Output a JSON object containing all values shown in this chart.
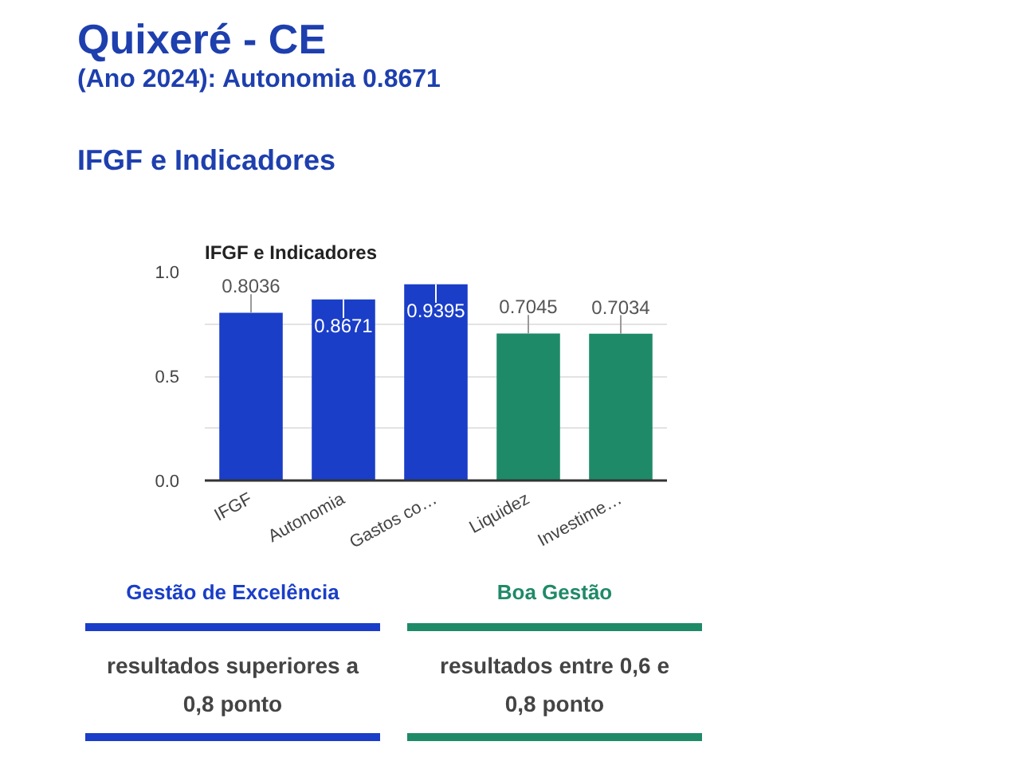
{
  "chart_data": {
    "type": "bar",
    "title": "Quixeré - CE",
    "subtitle": "(Ano 2024): Autonomia 0.8671",
    "annotations": [
      "IFGF e Indicadores",
      "IFGF e Indicadores",
      "resultados superiores a 0,8 ponto",
      "resultados entre 0,6 e 0,8 ponto"
    ],
    "categories": [
      "IFGF",
      "Autonomia",
      "Gastos co…",
      "Liquidez",
      "Investime…"
    ],
    "series": [
      {
        "name": "Gestão de Excelência",
        "color": "#1a3ec8",
        "values": [
          0.8036,
          0.8671,
          0.9395,
          null,
          null
        ]
      },
      {
        "name": "Boa Gestão",
        "color": "#1f8a68",
        "values": [
          null,
          null,
          null,
          0.7045,
          0.7034
        ]
      }
    ],
    "ylim": [
      0,
      1
    ],
    "yticks": [
      {
        "value": 0,
        "label": "0.0"
      },
      {
        "value": 0.25,
        "label": null
      },
      {
        "value": 0.5,
        "label": "0.5"
      },
      {
        "value": 0.75,
        "label": null
      },
      {
        "value": 1,
        "label": "1.0"
      }
    ],
    "grid": "y",
    "legend": "bottom",
    "data_labels": true
  }
}
